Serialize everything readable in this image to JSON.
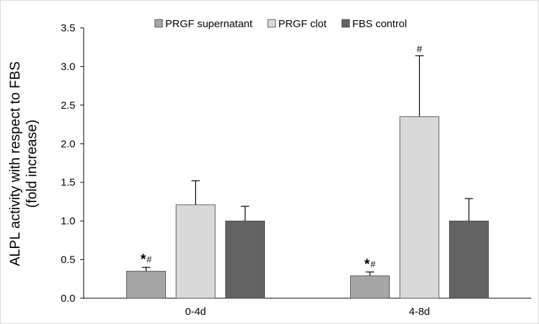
{
  "chart_data": {
    "type": "bar",
    "categories": [
      "0-4d",
      "4-8d"
    ],
    "series": [
      {
        "name": "PRGF supernatant",
        "values": [
          0.35,
          0.29
        ],
        "errors": [
          0.05,
          0.05
        ],
        "color": "#a6a6a6",
        "annotations": [
          "*#",
          "*#"
        ]
      },
      {
        "name": "PRGF clot",
        "values": [
          1.21,
          2.35
        ],
        "errors": [
          0.31,
          0.79
        ],
        "color": "#d9d9d9",
        "annotations": [
          "",
          "#"
        ]
      },
      {
        "name": "FBS control",
        "values": [
          1.0,
          1.0
        ],
        "errors": [
          0.19,
          0.29
        ],
        "color": "#636363",
        "annotations": [
          "",
          ""
        ]
      }
    ],
    "ylabel_lines": [
      "ALPL activity with respect to FBS",
      "(fold increase)"
    ],
    "xlabel": "",
    "title": "",
    "ylim": [
      0,
      3.5
    ],
    "yticks": [
      "0.0",
      "0.5",
      "1.0",
      "1.5",
      "2.0",
      "2.5",
      "3.0",
      "3.5"
    ],
    "ytick_values": [
      0,
      0.5,
      1.0,
      1.5,
      2.0,
      2.5,
      3.0,
      3.5
    ],
    "grid": false,
    "legend_position": "top"
  }
}
